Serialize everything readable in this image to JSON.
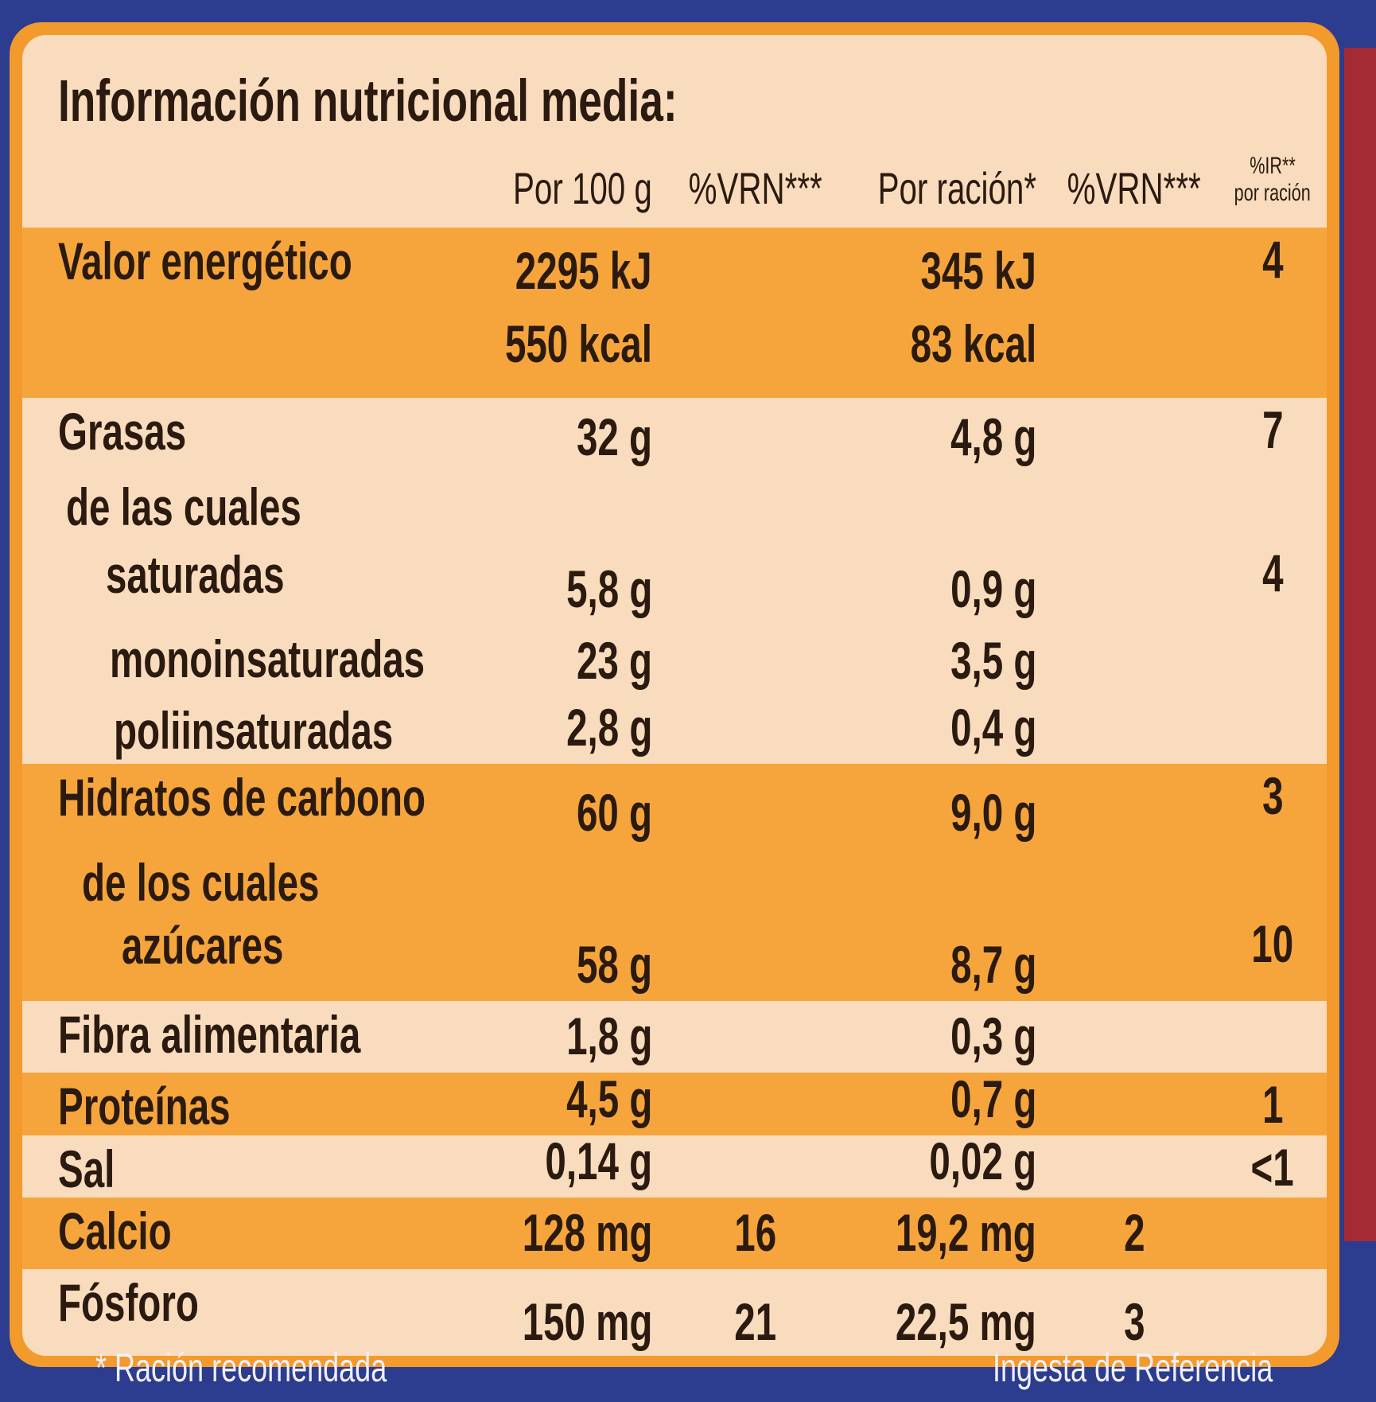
{
  "title": "Información nutricional media:",
  "columns": [
    "Por 100 g",
    "%VRN***",
    "Por ración*",
    "%VRN***",
    [
      "%IR**",
      "por ración"
    ]
  ],
  "rows": [
    {
      "label": "Valor energético",
      "per_100g": [
        "2295 kJ",
        "550 kcal"
      ],
      "per_serving": [
        "345 kJ",
        "83 kcal"
      ],
      "ir_serving": "4"
    },
    {
      "label": "Grasas",
      "per_100g": "32 g",
      "per_serving": "4,8 g",
      "ir_serving": "7"
    },
    {
      "label": "de las cuales"
    },
    {
      "label": "saturadas",
      "per_100g": "5,8 g",
      "per_serving": "0,9 g",
      "ir_serving": "4"
    },
    {
      "label": "monoinsaturadas",
      "per_100g": "23 g",
      "per_serving": "3,5 g"
    },
    {
      "label": "poliinsaturadas",
      "per_100g": "2,8 g",
      "per_serving": "0,4 g"
    },
    {
      "label": "Hidratos de carbono",
      "per_100g": "60 g",
      "per_serving": "9,0 g",
      "ir_serving": "3"
    },
    {
      "label": "de los cuales"
    },
    {
      "label": "azúcares",
      "per_100g": "58 g",
      "per_serving": "8,7 g",
      "ir_serving": "10"
    },
    {
      "label": "Fibra alimentaria",
      "per_100g": "1,8 g",
      "per_serving": "0,3 g"
    },
    {
      "label": "Proteínas",
      "per_100g": "4,5 g",
      "per_serving": "0,7 g",
      "ir_serving": "1"
    },
    {
      "label": "Sal",
      "per_100g": "0,14 g",
      "per_serving": "0,02 g",
      "ir_serving": "<1"
    },
    {
      "label": "Calcio",
      "per_100g": "128 mg",
      "vrn_100g": "16",
      "per_serving": "19,2 mg",
      "vrn_serving": "2"
    },
    {
      "label": "Fósforo",
      "per_100g": "150 mg",
      "vrn_100g": "21",
      "per_serving": "22,5 mg",
      "vrn_serving": "3"
    }
  ],
  "footer": [
    "* Ración recomendada",
    "Ingesta de Referencia"
  ]
}
